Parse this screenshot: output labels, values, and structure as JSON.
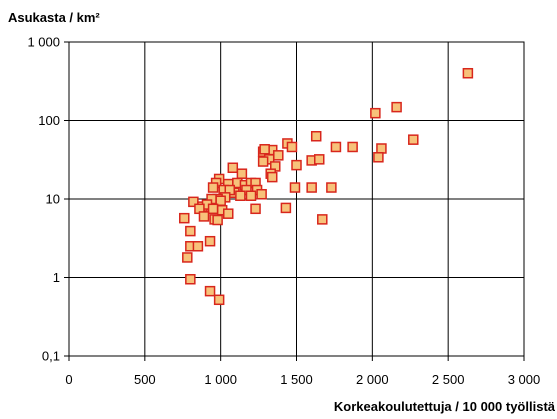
{
  "chart_data": {
    "type": "scatter",
    "ylabel": "Asukasta / km²",
    "xlabel": "Korkeakoulutettuja / 10 000 työllistä",
    "xlim": [
      0,
      3000
    ],
    "ylim": [
      0.1,
      1000
    ],
    "yscale": "log",
    "grid": true,
    "x_ticks": [
      {
        "value": 0,
        "label": "0"
      },
      {
        "value": 500,
        "label": "500"
      },
      {
        "value": 1000,
        "label": "1 000"
      },
      {
        "value": 1500,
        "label": "1 500"
      },
      {
        "value": 2000,
        "label": "2 000"
      },
      {
        "value": 2500,
        "label": "2 500"
      },
      {
        "value": 3000,
        "label": "3 000"
      }
    ],
    "y_ticks": [
      {
        "value": 0.1,
        "label": "0,1"
      },
      {
        "value": 1,
        "label": "1"
      },
      {
        "value": 10,
        "label": "10"
      },
      {
        "value": 100,
        "label": "100"
      },
      {
        "value": 1000,
        "label": "1 000"
      }
    ],
    "marker_fill": "#f7c27a",
    "marker_stroke": "#d8261c",
    "points": [
      [
        2630,
        400
      ],
      [
        2160,
        148
      ],
      [
        2020,
        124
      ],
      [
        2270,
        57
      ],
      [
        2060,
        44
      ],
      [
        2040,
        34
      ],
      [
        1630,
        63
      ],
      [
        1870,
        46
      ],
      [
        1760,
        46
      ],
      [
        1440,
        51
      ],
      [
        1470,
        46
      ],
      [
        1340,
        42
      ],
      [
        1280,
        40
      ],
      [
        1290,
        43
      ],
      [
        1380,
        36
      ],
      [
        1320,
        32
      ],
      [
        1600,
        31
      ],
      [
        1650,
        32
      ],
      [
        1500,
        27
      ],
      [
        1360,
        26
      ],
      [
        1330,
        21
      ],
      [
        1280,
        30
      ],
      [
        1340,
        19
      ],
      [
        1600,
        14
      ],
      [
        1730,
        14
      ],
      [
        1490,
        14
      ],
      [
        1430,
        7.7
      ],
      [
        1670,
        5.5
      ],
      [
        1080,
        25
      ],
      [
        1140,
        21
      ],
      [
        990,
        18
      ],
      [
        970,
        16
      ],
      [
        950,
        14
      ],
      [
        1050,
        15.5
      ],
      [
        1110,
        16
      ],
      [
        1160,
        15
      ],
      [
        1200,
        16
      ],
      [
        1230,
        16
      ],
      [
        1240,
        13
      ],
      [
        1270,
        11.5
      ],
      [
        1170,
        13
      ],
      [
        1090,
        12
      ],
      [
        1130,
        11
      ],
      [
        1020,
        13
      ],
      [
        1060,
        13
      ],
      [
        1030,
        10.5
      ],
      [
        980,
        10
      ],
      [
        940,
        10
      ],
      [
        1200,
        11
      ],
      [
        1000,
        9.5
      ],
      [
        820,
        9.2
      ],
      [
        880,
        8
      ],
      [
        910,
        8.5
      ],
      [
        950,
        7.5
      ],
      [
        1010,
        7.2
      ],
      [
        1050,
        6.5
      ],
      [
        1230,
        7.5
      ],
      [
        860,
        7.5
      ],
      [
        890,
        6
      ],
      [
        960,
        5.5
      ],
      [
        980,
        5.4
      ],
      [
        760,
        5.7
      ],
      [
        800,
        3.9
      ],
      [
        800,
        2.5
      ],
      [
        850,
        2.5
      ],
      [
        930,
        2.9
      ],
      [
        780,
        1.8
      ],
      [
        800,
        0.95
      ],
      [
        930,
        0.67
      ],
      [
        990,
        0.52
      ]
    ]
  }
}
